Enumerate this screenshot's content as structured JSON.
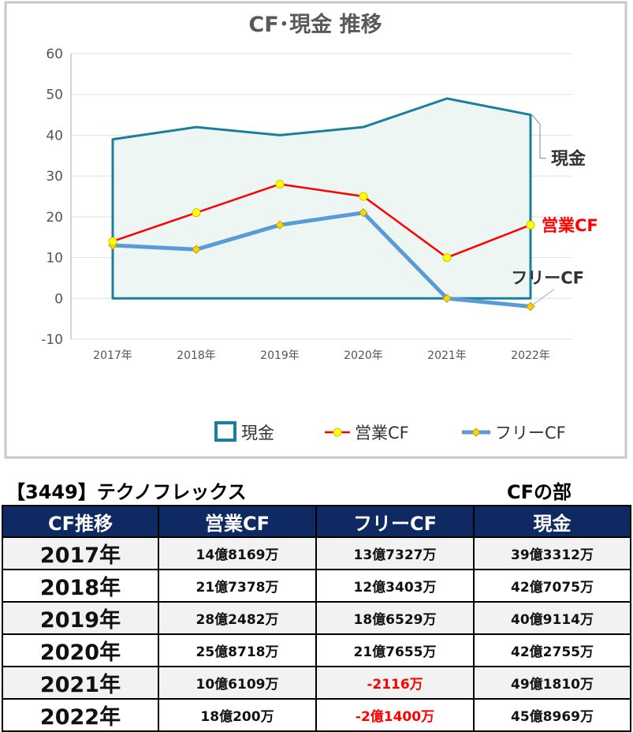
{
  "chart_data": {
    "type": "line",
    "title": "CF･現金 推移",
    "categories": [
      "2017年",
      "2018年",
      "2019年",
      "2020年",
      "2021年",
      "2022年"
    ],
    "ylim": [
      -10,
      60
    ],
    "y_ticks": [
      "60",
      "50",
      "40",
      "30",
      "20",
      "10",
      "0",
      "-10"
    ],
    "y_tick_values": [
      60,
      50,
      40,
      30,
      20,
      10,
      0,
      -10
    ],
    "grid": true,
    "legend_position": "bottom-right",
    "series": [
      {
        "name": "現金",
        "style": "area",
        "color": "#1a7f9c",
        "values": [
          39,
          42,
          40,
          42,
          49,
          45
        ],
        "label": "現金",
        "label_color": "#333333"
      },
      {
        "name": "営業CF",
        "style": "line-markers",
        "color": "#ff0000",
        "marker_color": "#ffff00",
        "values": [
          14,
          21,
          28,
          25,
          10,
          18
        ],
        "label": "営業CF",
        "label_color": "#ff0000"
      },
      {
        "name": "フリーCF",
        "style": "line-diamonds",
        "color": "#5b9bd5",
        "marker_color": "#ffd700",
        "values": [
          13,
          12,
          18,
          21,
          0,
          -2
        ],
        "label": "フリーCF",
        "label_color": "#333333"
      }
    ]
  },
  "header": {
    "company": "【3449】テクノフレックス",
    "section": "CFの部"
  },
  "table": {
    "columns": [
      "CF推移",
      "営業CF",
      "フリーCF",
      "現金"
    ],
    "rows": [
      {
        "year": "2017年",
        "op": "14億8169万",
        "free": "13億7327万",
        "cash": "39億3312万",
        "free_negative": false
      },
      {
        "year": "2018年",
        "op": "21億7378万",
        "free": "12億3403万",
        "cash": "42億7075万",
        "free_negative": false
      },
      {
        "year": "2019年",
        "op": "28億2482万",
        "free": "18億6529万",
        "cash": "40億9114万",
        "free_negative": false
      },
      {
        "year": "2020年",
        "op": "25億8718万",
        "free": "21億7655万",
        "cash": "42億2755万",
        "free_negative": false
      },
      {
        "year": "2021年",
        "op": "10億6109万",
        "free": "-2116万",
        "cash": "49億1810万",
        "free_negative": true
      },
      {
        "year": "2022年",
        "op": "18億200万",
        "free": "-2億1400万",
        "cash": "45億8969万",
        "free_negative": true
      }
    ]
  }
}
